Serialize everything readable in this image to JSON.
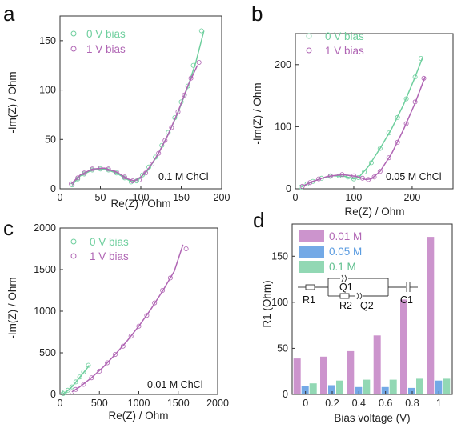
{
  "panels": [
    {
      "letter": "a",
      "note": "0.1 M ChCl",
      "xlabel": "Re(Z) / Ohm",
      "ylabel": "-Im(Z) / Ohm",
      "xlim": [
        0,
        200
      ],
      "ylim": [
        0,
        175
      ],
      "xticks": [
        0,
        50,
        100,
        150,
        200
      ],
      "yticks": [
        0,
        50,
        100,
        150
      ],
      "legend": [
        "0 V bias",
        "1 V bias"
      ]
    },
    {
      "letter": "b",
      "note": "0.05 M ChCl",
      "xlabel": "Re(Z) / Ohm",
      "ylabel": "-Im(Z) / Ohm",
      "xlim": [
        0,
        270
      ],
      "ylim": [
        0,
        250
      ],
      "xticks": [
        0,
        100,
        200
      ],
      "yticks": [
        0,
        100,
        200
      ],
      "legend": [
        "0 V bias",
        "1 V bias"
      ]
    },
    {
      "letter": "c",
      "note": "0.01 M ChCl",
      "xlabel": "Re(Z) / Ohm",
      "ylabel": "-Im(Z) / Ohm",
      "xlim": [
        0,
        2000
      ],
      "ylim": [
        0,
        2000
      ],
      "xticks": [
        0,
        500,
        1000,
        1500,
        2000
      ],
      "yticks": [
        0,
        500,
        1000,
        1500,
        2000
      ],
      "legend": [
        "0 V bias",
        "1 V bias"
      ]
    },
    {
      "letter": "d",
      "xlabel": "Bias voltage (V)",
      "ylabel": "R1 (Ohm)",
      "xticks": [
        "0",
        "0.2",
        "0.4",
        "0.6",
        "0.8",
        "1"
      ],
      "yticks": [
        0,
        50,
        100,
        150
      ],
      "legend": [
        "0.01 M",
        "0.05 M",
        "0.1 M"
      ],
      "circuit_labels": [
        "R1",
        "Q1",
        "R2",
        "Q2",
        "C1"
      ]
    }
  ],
  "colors": {
    "green": "#6fcf9e",
    "purple": "#b065b4",
    "bar_purple": "#cc94cd",
    "bar_blue": "#73a9e6",
    "bar_green": "#92d8b4"
  },
  "chart_data": [
    {
      "type": "scatter",
      "series": [
        {
          "name": "0 V bias",
          "points": [
            [
              15,
              4
            ],
            [
              22,
              10
            ],
            [
              30,
              15
            ],
            [
              40,
              19
            ],
            [
              50,
              20
            ],
            [
              60,
              19
            ],
            [
              70,
              16
            ],
            [
              80,
              11
            ],
            [
              88,
              7
            ],
            [
              95,
              8
            ],
            [
              102,
              14
            ],
            [
              110,
              22
            ],
            [
              118,
              32
            ],
            [
              126,
              44
            ],
            [
              134,
              57
            ],
            [
              142,
              72
            ],
            [
              150,
              88
            ],
            [
              158,
              104
            ],
            [
              165,
              125
            ],
            [
              175,
              160
            ]
          ],
          "fit": [
            [
              15,
              4
            ],
            [
              25,
              13
            ],
            [
              40,
              19
            ],
            [
              55,
              20
            ],
            [
              70,
              16
            ],
            [
              82,
              10
            ],
            [
              90,
              7
            ],
            [
              98,
              10
            ],
            [
              108,
              18
            ],
            [
              120,
              33
            ],
            [
              132,
              52
            ],
            [
              145,
              75
            ],
            [
              158,
              103
            ],
            [
              168,
              128
            ],
            [
              178,
              160
            ]
          ]
        },
        {
          "name": "1 V bias",
          "points": [
            [
              14,
              5
            ],
            [
              22,
              11
            ],
            [
              30,
              16
            ],
            [
              40,
              20
            ],
            [
              50,
              21
            ],
            [
              60,
              20
            ],
            [
              70,
              17
            ],
            [
              80,
              12
            ],
            [
              90,
              8
            ],
            [
              98,
              9
            ],
            [
              106,
              16
            ],
            [
              114,
              25
            ],
            [
              122,
              36
            ],
            [
              130,
              49
            ],
            [
              138,
              62
            ],
            [
              146,
              78
            ],
            [
              154,
              95
            ],
            [
              162,
              112
            ],
            [
              172,
              128
            ]
          ],
          "fit": [
            [
              14,
              5
            ],
            [
              25,
              14
            ],
            [
              40,
              20
            ],
            [
              55,
              21
            ],
            [
              70,
              17
            ],
            [
              84,
              10
            ],
            [
              92,
              8
            ],
            [
              100,
              12
            ],
            [
              110,
              21
            ],
            [
              122,
              36
            ],
            [
              134,
              55
            ],
            [
              146,
              78
            ],
            [
              158,
              104
            ],
            [
              170,
              125
            ]
          ]
        }
      ]
    },
    {
      "type": "scatter",
      "series": [
        {
          "name": "0 V bias",
          "points": [
            [
              10,
              3
            ],
            [
              20,
              8
            ],
            [
              30,
              12
            ],
            [
              45,
              17
            ],
            [
              60,
              20
            ],
            [
              75,
              21
            ],
            [
              90,
              19
            ],
            [
              100,
              16
            ],
            [
              108,
              18
            ],
            [
              118,
              27
            ],
            [
              130,
              42
            ],
            [
              145,
              65
            ],
            [
              160,
              90
            ],
            [
              175,
              115
            ],
            [
              190,
              145
            ],
            [
              205,
              180
            ],
            [
              215,
              210
            ]
          ],
          "fit": [
            [
              10,
              3
            ],
            [
              25,
              10
            ],
            [
              45,
              17
            ],
            [
              65,
              21
            ],
            [
              85,
              20
            ],
            [
              100,
              16
            ],
            [
              110,
              20
            ],
            [
              125,
              36
            ],
            [
              145,
              65
            ],
            [
              165,
              97
            ],
            [
              185,
              135
            ],
            [
              205,
              180
            ],
            [
              218,
              212
            ]
          ]
        },
        {
          "name": "1 V bias",
          "points": [
            [
              12,
              4
            ],
            [
              25,
              10
            ],
            [
              40,
              16
            ],
            [
              60,
              21
            ],
            [
              80,
              23
            ],
            [
              100,
              21
            ],
            [
              115,
              17
            ],
            [
              125,
              15
            ],
            [
              135,
              19
            ],
            [
              145,
              28
            ],
            [
              160,
              50
            ],
            [
              175,
              75
            ],
            [
              190,
              105
            ],
            [
              205,
              140
            ],
            [
              220,
              178
            ]
          ],
          "fit": [
            [
              12,
              4
            ],
            [
              30,
              12
            ],
            [
              55,
              20
            ],
            [
              80,
              23
            ],
            [
              105,
              20
            ],
            [
              120,
              15
            ],
            [
              130,
              16
            ],
            [
              145,
              28
            ],
            [
              165,
              57
            ],
            [
              185,
              95
            ],
            [
              205,
              138
            ],
            [
              222,
              180
            ]
          ]
        }
      ]
    },
    {
      "type": "scatter",
      "series": [
        {
          "name": "0 V bias",
          "points": [
            [
              40,
              10
            ],
            [
              60,
              30
            ],
            [
              100,
              50
            ],
            [
              150,
              90
            ],
            [
              200,
              150
            ],
            [
              250,
              210
            ],
            [
              300,
              270
            ],
            [
              360,
              350
            ]
          ],
          "fit": [
            [
              40,
              10
            ],
            [
              100,
              45
            ],
            [
              160,
              100
            ],
            [
              220,
              170
            ],
            [
              280,
              240
            ],
            [
              340,
              310
            ],
            [
              370,
              350
            ]
          ]
        },
        {
          "name": "1 V bias",
          "points": [
            [
              150,
              30
            ],
            [
              200,
              60
            ],
            [
              300,
              120
            ],
            [
              400,
              200
            ],
            [
              500,
              280
            ],
            [
              600,
              380
            ],
            [
              700,
              480
            ],
            [
              800,
              580
            ],
            [
              900,
              700
            ],
            [
              1000,
              820
            ],
            [
              1100,
              950
            ],
            [
              1200,
              1100
            ],
            [
              1300,
              1250
            ],
            [
              1400,
              1400
            ],
            [
              1600,
              1750
            ]
          ],
          "fit": [
            [
              150,
              30
            ],
            [
              250,
              90
            ],
            [
              400,
              200
            ],
            [
              550,
              330
            ],
            [
              700,
              480
            ],
            [
              850,
              640
            ],
            [
              1000,
              820
            ],
            [
              1150,
              1020
            ],
            [
              1300,
              1240
            ],
            [
              1450,
              1480
            ],
            [
              1560,
              1800
            ]
          ]
        }
      ]
    },
    {
      "type": "bar",
      "categories": [
        "0",
        "0.2",
        "0.4",
        "0.6",
        "0.8",
        "1"
      ],
      "ylim": [
        0,
        185
      ],
      "series": [
        {
          "name": "0.01 M",
          "values": [
            39,
            41,
            47,
            64,
            103,
            171
          ]
        },
        {
          "name": "0.05 M",
          "values": [
            9,
            10,
            8,
            8,
            7,
            15
          ]
        },
        {
          "name": "0.1 M",
          "values": [
            12,
            15,
            16,
            16,
            17,
            17
          ]
        }
      ]
    }
  ]
}
